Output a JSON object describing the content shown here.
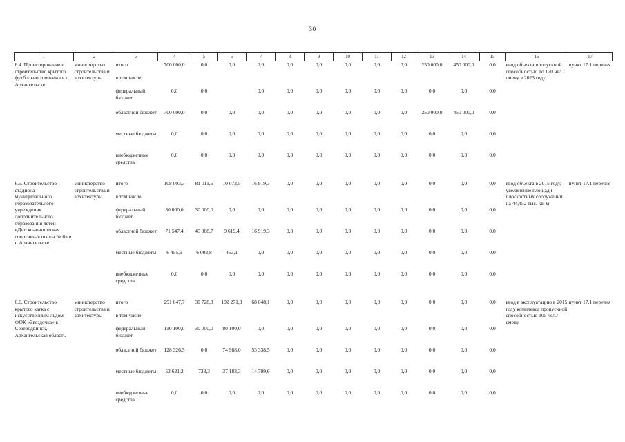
{
  "page_number": "30",
  "table": {
    "column_headers": [
      "1",
      "2",
      "3",
      "4",
      "5",
      "6",
      "7",
      "8",
      "9",
      "10",
      "11",
      "12",
      "13",
      "14",
      "15",
      "16",
      "17"
    ],
    "row_labels": {
      "total": "итого",
      "including": "в том числе:",
      "federal": "федеральный бюджет",
      "regional": "областной бюджет",
      "local": "местные бюджеты",
      "extrabudgetary": "внебюджетные средства"
    },
    "projects": [
      {
        "name": "6.4. Проектирование и строительство крытого футбольного манежа в г. Архангельске",
        "executor": "министерство строительства и архитектуры",
        "amounts": {
          "total": [
            "700 000,0",
            "0,0",
            "0,0",
            "0,0",
            "0,0",
            "0,0",
            "0,0",
            "0,0",
            "0,0",
            "250 000,0",
            "450 000,0",
            "0,0"
          ],
          "federal": [
            "0,0",
            "0,0",
            "",
            "0,0",
            "0,0",
            "0,0",
            "0,0",
            "0,0",
            "0,0",
            "0,0",
            "0,0",
            "0,0"
          ],
          "regional": [
            "700 000,0",
            "0,0",
            "0,0",
            "0,0",
            "0,0",
            "0,0",
            "0,0",
            "0,0",
            "0,0",
            "250 000,0",
            "450 000,0",
            "0,0"
          ],
          "local": [
            "0,0",
            "0,0",
            "0,0",
            "0,0",
            "0,0",
            "0,0",
            "0,0",
            "0,0",
            "0,0",
            "0,0",
            "0,0",
            "0,0"
          ],
          "extrabudgetary": [
            "0,0",
            "0,0",
            "0,0",
            "0,0",
            "0,0",
            "0,0",
            "0,0",
            "0,0",
            "0,0",
            "0,0",
            "0,0",
            "0,0"
          ]
        },
        "result": "ввод объекта пропускной способностью до 120 чел./смену в 2023 году",
        "reference": "пункт 17.1 перечня"
      },
      {
        "name": "6.5. Строительство стадиона муниципального образовательного учреждения дополнительного образования детей «Детско-юношеская спортивная школа № 6» в г. Архангельске",
        "executor": "министерство строительства и архитектуры",
        "amounts": {
          "total": [
            "108 003,3",
            "81 011,5",
            "10 072,5",
            "16 919,3",
            "0,0",
            "0,0",
            "0,0",
            "0,0",
            "0,0",
            "0,0",
            "0,0",
            "0,0"
          ],
          "federal": [
            "30 000,0",
            "30 000,0",
            "0,0",
            "0,0",
            "0,0",
            "0,0",
            "0,0",
            "0,0",
            "0,0",
            "0,0",
            "0,0",
            "0,0"
          ],
          "regional": [
            "71 547,4",
            "45 008,7",
            "9 619,4",
            "16 919,3",
            "0,0",
            "0,0",
            "0,0",
            "0,0",
            "0,0",
            "0,0",
            "0,0",
            "0,0"
          ],
          "local": [
            "6 455,9",
            "6 002,8",
            "453,1",
            "0,0",
            "0,0",
            "0,0",
            "0,0",
            "0,0",
            "0,0",
            "0,0",
            "0,0",
            "0,0"
          ],
          "extrabudgetary": [
            "0,0",
            "0,0",
            "0,0",
            "0,0",
            "0,0",
            "0,0",
            "0,0",
            "0,0",
            "0,0",
            "0,0",
            "0,0",
            "0,0"
          ]
        },
        "result": "ввод объекта в 2015 году, увеличение площади плоскостных сооружений на 44,452 тыс. кв. м",
        "reference": "пункт 17.1 перечня"
      },
      {
        "name": "6.6. Строительство крытого катка с искусственным льдом ФОК «Звездочка» г. Северодвинск, Архангельская область",
        "executor": "министерство строительства и архитектуры",
        "amounts": {
          "total": [
            "291 047,7",
            "30 728,3",
            "192 271,3",
            "68 048,1",
            "0,0",
            "0,0",
            "0,0",
            "0,0",
            "0,0",
            "0,0",
            "0,0",
            "0,0"
          ],
          "federal": [
            "110 100,0",
            "30 000,0",
            "80 100,0",
            "0,0",
            "0,0",
            "0,0",
            "0,0",
            "0,0",
            "0,0",
            "0,0",
            "0,0",
            "0,0"
          ],
          "regional": [
            "128 326,5",
            "0,0",
            "74 988,0",
            "53 338,5",
            "0,0",
            "0,0",
            "0,0",
            "0,0",
            "0,0",
            "0,0",
            "0,0",
            "0,0"
          ],
          "local": [
            "52 621,2",
            "728,3",
            "37 183,3",
            "14 709,6",
            "0,0",
            "0,0",
            "0,0",
            "0,0",
            "0,0",
            "0,0",
            "0,0",
            "0,0"
          ],
          "extrabudgetary": [
            "0,0",
            "0,0",
            "0,0",
            "0,0",
            "0,0",
            "0,0",
            "0,0",
            "0,0",
            "0,0",
            "0,0",
            "0,0",
            "0,0"
          ]
        },
        "result": "ввод в эксплуатацию в 2015 году комплекса пропускной способностью 105 чел./смену",
        "reference": "пункт 17.1 перечня"
      }
    ]
  }
}
